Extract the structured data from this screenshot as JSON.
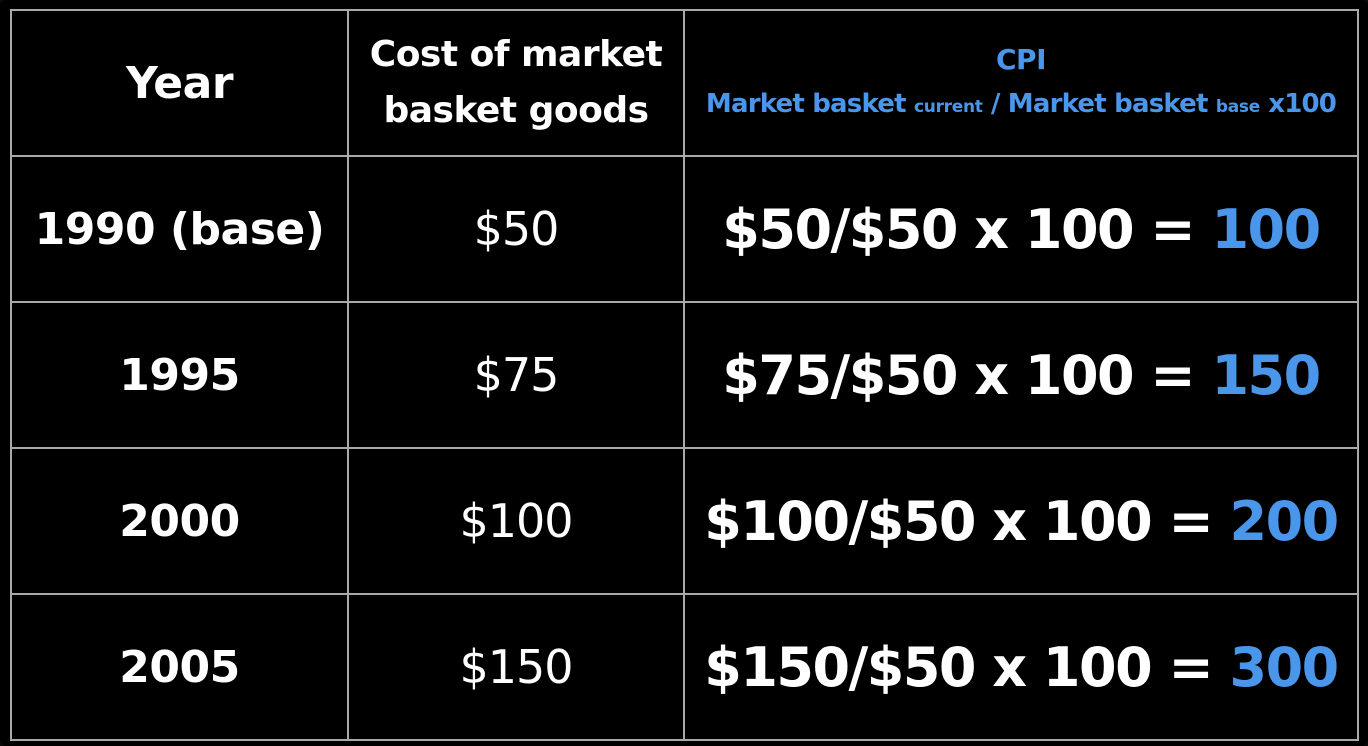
{
  "headers": {
    "year": "Year",
    "cost_line1": "Cost of market",
    "cost_line2": "basket goods",
    "cpi_title": "CPI",
    "formula": {
      "part1": "Market basket ",
      "sub1": "current",
      "part2": " / Market basket ",
      "sub2": "base",
      "part3": " x100"
    }
  },
  "rows": [
    {
      "year": "1990 (base)",
      "cost": "$50",
      "calc": "$50/$50 x 100 = ",
      "result": "100"
    },
    {
      "year": "1995",
      "cost": "$75",
      "calc": "$75/$50 x 100 = ",
      "result": "150"
    },
    {
      "year": "2000",
      "cost": "$100",
      "calc": "$100/$50 x 100 = ",
      "result": "200"
    },
    {
      "year": "2005",
      "cost": "$150",
      "calc": "$150/$50 x 100 = ",
      "result": "300"
    }
  ],
  "colors": {
    "background": "#000000",
    "text": "#ffffff",
    "accent": "#4a96ea",
    "grid": "#a9a9a9"
  }
}
